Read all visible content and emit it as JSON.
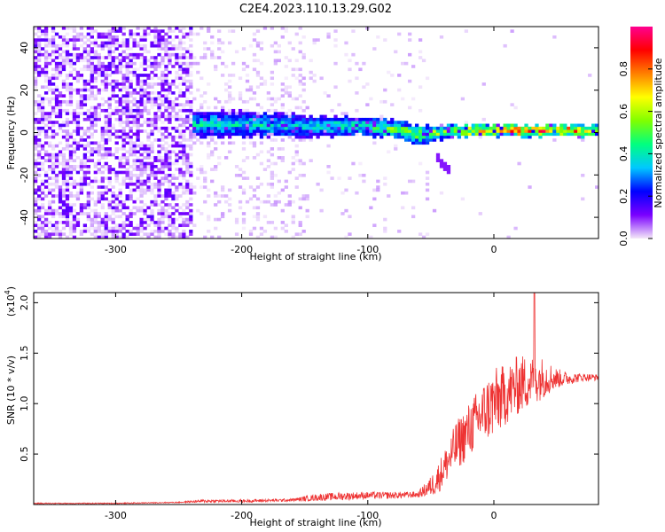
{
  "title": "C2E4.2023.110.13.29.G02",
  "chart_data": [
    {
      "type": "heatmap",
      "xlabel": "Height of straight line (km)",
      "ylabel": "Frequency (Hz)",
      "xlim": [
        -365,
        83
      ],
      "ylim": [
        -50,
        50
      ],
      "x_ticks": [
        -300,
        -200,
        -100,
        0
      ],
      "y_ticks": [
        -40,
        -20,
        0,
        20,
        40
      ],
      "colorbar": {
        "label": "Normalized spectral amplitude",
        "range": [
          0,
          1
        ],
        "ticks": [
          0.0,
          0.2,
          0.4,
          0.6,
          0.8
        ],
        "colors": [
          "#f4e8f8",
          "#7a00ff",
          "#0000ff",
          "#00c8ff",
          "#00ff80",
          "#80ff00",
          "#ffff00",
          "#ff8000",
          "#ff0000",
          "#ff0090"
        ]
      },
      "ridge": {
        "description_points_x": [
          -240,
          -200,
          -150,
          -110,
          -80,
          -60,
          -40,
          -20,
          0,
          20,
          40,
          60,
          80
        ],
        "center_freq": [
          4,
          4,
          3,
          3,
          2,
          -1,
          0,
          1,
          1,
          1,
          1,
          1,
          1
        ],
        "peak_amplitude": [
          0.4,
          0.4,
          0.4,
          0.45,
          0.55,
          0.55,
          0.6,
          0.7,
          0.8,
          0.85,
          0.85,
          0.8,
          0.7
        ],
        "halfwidth_hz": [
          6,
          6,
          5,
          4,
          4,
          4,
          3,
          3,
          2.5,
          2.5,
          2.5,
          2.5,
          2.5
        ]
      },
      "noise_region_x": [
        -365,
        -238
      ],
      "tail": {
        "x": [
          -45,
          -35
        ],
        "freq": [
          -12,
          -18
        ]
      }
    },
    {
      "type": "line",
      "xlabel": "Height of straight line (km)",
      "ylabel": "SNR (10 * v/v)",
      "y_multiplier": "(x10",
      "y_multiplier_exp": "4",
      "multiplier_suffix": ")",
      "xlim": [
        -365,
        83
      ],
      "ylim": [
        0,
        2.1
      ],
      "x_ticks": [
        -300,
        -200,
        -100,
        0
      ],
      "y_ticks": [
        0.5,
        1.0,
        1.5,
        2.0
      ],
      "color": "#ee3333",
      "envelope": {
        "x": [
          -365,
          -300,
          -250,
          -230,
          -200,
          -160,
          -140,
          -120,
          -100,
          -80,
          -60,
          -50,
          -45,
          -40,
          -35,
          -30,
          -20,
          -10,
          0,
          10,
          20,
          30,
          40,
          50,
          60,
          70,
          83
        ],
        "base": [
          0.01,
          0.01,
          0.02,
          0.03,
          0.03,
          0.04,
          0.06,
          0.07,
          0.08,
          0.08,
          0.09,
          0.15,
          0.2,
          0.3,
          0.4,
          0.5,
          0.65,
          0.8,
          0.9,
          1.0,
          1.1,
          1.15,
          1.2,
          1.22,
          1.23,
          1.25,
          1.25
        ],
        "amp": [
          0.01,
          0.01,
          0.01,
          0.03,
          0.03,
          0.03,
          0.07,
          0.08,
          0.07,
          0.07,
          0.06,
          0.2,
          0.3,
          0.35,
          0.4,
          0.5,
          0.55,
          0.6,
          0.7,
          0.6,
          0.6,
          0.5,
          0.4,
          0.2,
          0.12,
          0.08,
          0.06
        ]
      },
      "peak": {
        "x": 32,
        "y": 2.1
      }
    }
  ]
}
